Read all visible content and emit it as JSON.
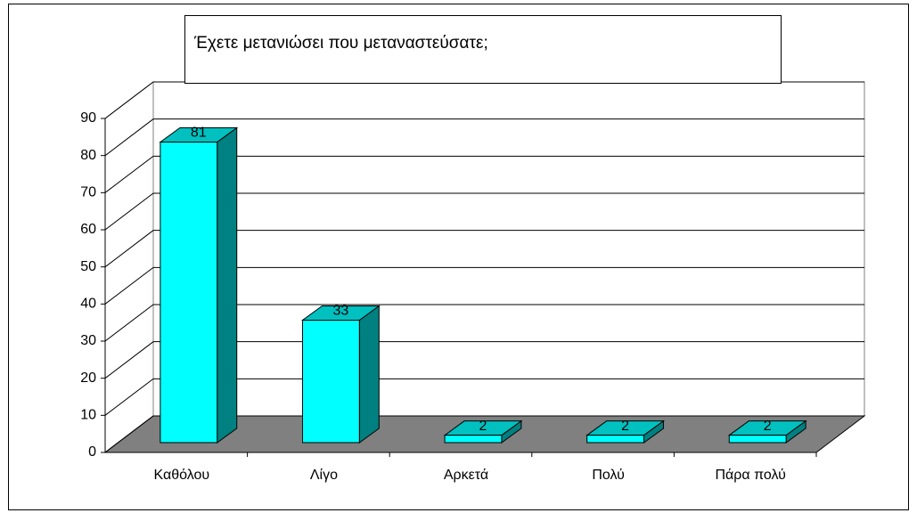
{
  "chart_data": {
    "type": "bar3d",
    "title": "Έχετε μετανιώσει που μεταναστεύσατε;",
    "categories": [
      "Καθόλου",
      "Λίγο",
      "Αρκετά",
      "Πολύ",
      "Πάρα πολύ"
    ],
    "values": [
      81,
      33,
      2,
      2,
      2
    ],
    "color": "#00ffff",
    "ylim": [
      0,
      90
    ],
    "yticks": [
      0,
      10,
      20,
      30,
      40,
      50,
      60,
      70,
      80,
      90
    ],
    "grid": true
  }
}
